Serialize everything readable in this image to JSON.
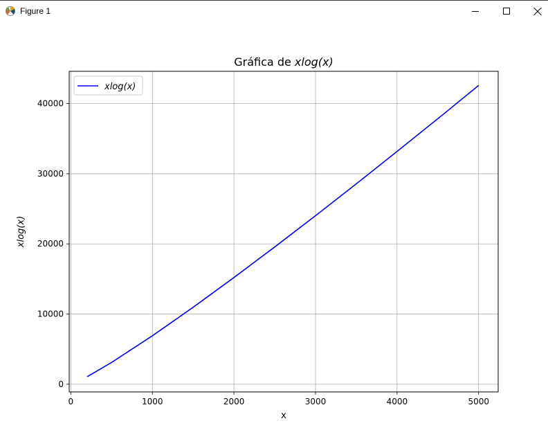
{
  "window": {
    "title": "Figure 1",
    "app_icon": "matplotlib-logo-icon",
    "controls": [
      "minimize-icon",
      "maximize-icon",
      "close-icon"
    ]
  },
  "chart_data": {
    "type": "line",
    "title_prefix": "Gráfica de ",
    "title_math": "xlog(x)",
    "xlabel": "x",
    "ylabel": "xlog(x)",
    "xlim": [
      -20,
      5240
    ],
    "ylim": [
      -1100,
      44600
    ],
    "xticks": [
      0,
      1000,
      2000,
      3000,
      4000,
      5000
    ],
    "yticks": [
      0,
      10000,
      20000,
      30000,
      40000
    ],
    "grid": true,
    "legend": {
      "loc": "upper-left",
      "entries": [
        "xlog(x)"
      ]
    },
    "series": [
      {
        "name": "xlog(x)",
        "color": "#0000ff",
        "x": [
          200,
          500,
          1000,
          1500,
          2000,
          2500,
          3000,
          3500,
          4000,
          4500,
          5000
        ],
        "y": [
          1060,
          3107,
          6908,
          10970,
          15202,
          19560,
          24019,
          28563,
          33176,
          37852,
          42586
        ]
      }
    ],
    "colors": {
      "grid": "#b0b0b0",
      "axes": "#000000"
    }
  }
}
